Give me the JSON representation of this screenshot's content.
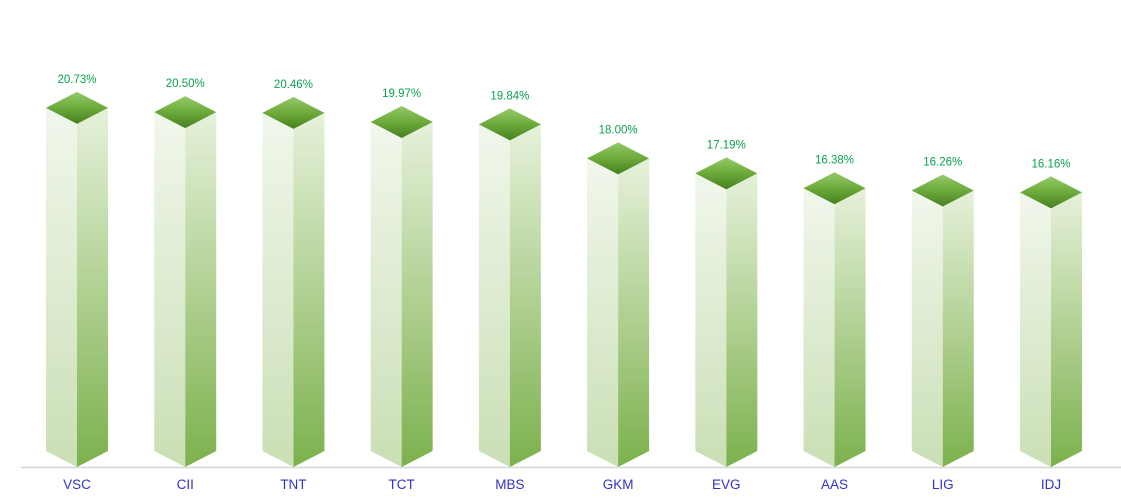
{
  "chart_data": {
    "type": "bar",
    "variant": "3d-column",
    "title": "",
    "xlabel": "",
    "ylabel": "",
    "grid": false,
    "legend": false,
    "categories": [
      "VSC",
      "CII",
      "TNT",
      "TCT",
      "MBS",
      "GKM",
      "EVG",
      "AAS",
      "LIG",
      "IDJ"
    ],
    "values": [
      20.73,
      20.5,
      20.46,
      19.97,
      19.84,
      18.0,
      17.19,
      16.38,
      16.26,
      16.16
    ],
    "value_labels": [
      "20.73%",
      "20.50%",
      "20.46%",
      "19.97%",
      "19.84%",
      "18.00%",
      "17.19%",
      "16.38%",
      "16.26%",
      "16.16%"
    ],
    "colors": {
      "top_face_gradient": [
        "#96c96c",
        "#6fae3e",
        "#47801f"
      ],
      "left_face_gradient": [
        "#f1f7ec",
        "#cadfb5"
      ],
      "right_face_gradient": [
        "#e6f1da",
        "#7cb14d"
      ],
      "value_label": "#0aa24f",
      "category_label": "#3232c8",
      "axis_line": "#d6d6d6",
      "background": "#ffffff"
    }
  }
}
